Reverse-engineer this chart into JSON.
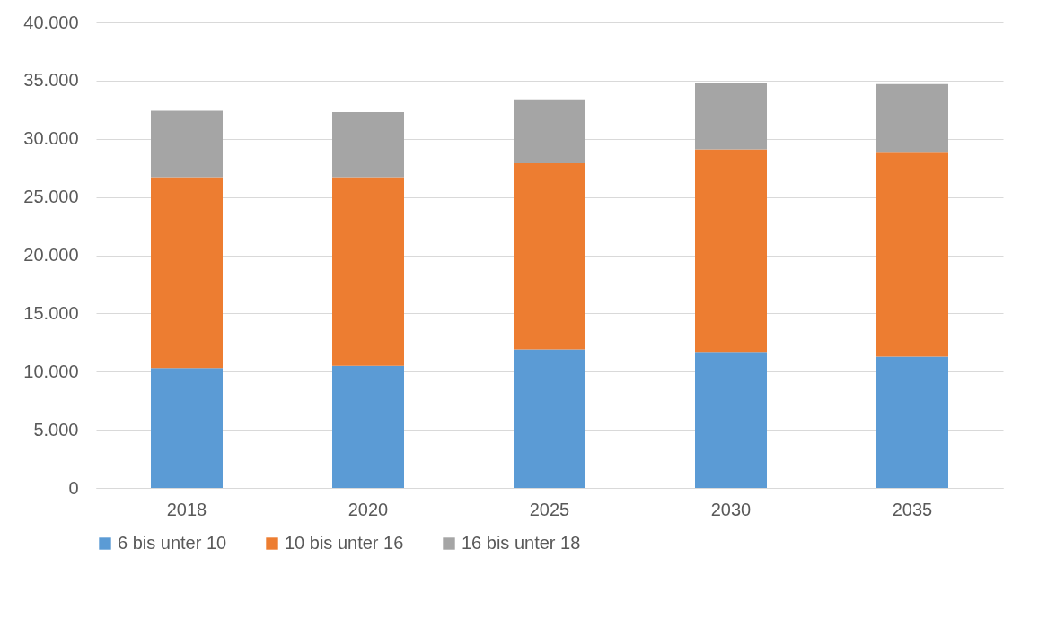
{
  "chart_data": {
    "type": "bar",
    "stacked": true,
    "categories": [
      "2018",
      "2020",
      "2025",
      "2030",
      "2035"
    ],
    "series": [
      {
        "name": "6 bis unter 10",
        "color": "#5b9bd5",
        "values": [
          10300,
          10500,
          11900,
          11700,
          11300
        ]
      },
      {
        "name": "10 bis unter 16",
        "color": "#ed7d31",
        "values": [
          16400,
          16200,
          16000,
          17400,
          17500
        ]
      },
      {
        "name": "16 bis unter 18",
        "color": "#a5a5a5",
        "values": [
          5700,
          5600,
          5500,
          5700,
          5900
        ]
      }
    ],
    "ylim": [
      0,
      40000
    ],
    "yticks": [
      0,
      {
        "value": 5000,
        "label": "5.000"
      },
      {
        "value": 10000,
        "label": "10.000"
      },
      {
        "value": 15000,
        "label": "15.000"
      },
      {
        "value": 20000,
        "label": "20.000"
      },
      {
        "value": 25000,
        "label": "25.000"
      },
      {
        "value": 30000,
        "label": "30.000"
      },
      {
        "value": 35000,
        "label": "35.000"
      },
      {
        "value": 40000,
        "label": "40.000"
      }
    ],
    "grid": "y",
    "legend": "bottom"
  }
}
